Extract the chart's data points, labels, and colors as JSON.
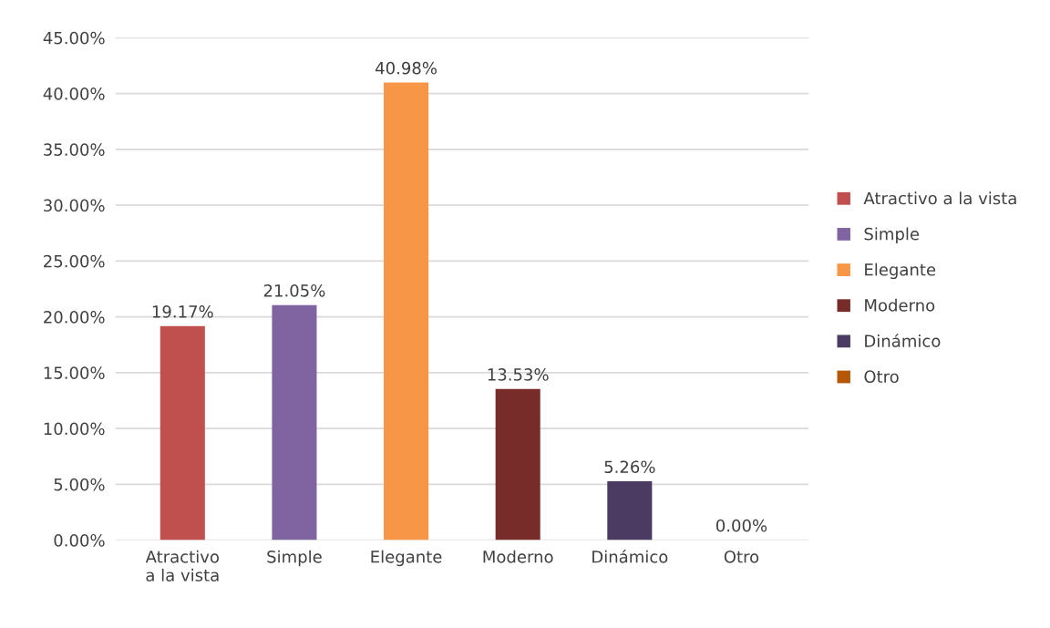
{
  "chart_data": {
    "type": "bar",
    "categories": [
      "Atractivo a la vista",
      "Simple",
      "Elegante",
      "Moderno",
      "Dinámico",
      "Otro"
    ],
    "series": [
      {
        "name": "Atractivo a la vista",
        "color": "#c0504d",
        "values": [
          19.17,
          null,
          null,
          null,
          null,
          null
        ],
        "value_labels": [
          "19.17%",
          null,
          null,
          null,
          null,
          null
        ]
      },
      {
        "name": "Simple",
        "color": "#8064a2",
        "values": [
          null,
          21.05,
          null,
          null,
          null,
          null
        ],
        "value_labels": [
          null,
          "21.05%",
          null,
          null,
          null,
          null
        ]
      },
      {
        "name": "Elegante",
        "color": "#f79646",
        "values": [
          null,
          null,
          40.98,
          null,
          null,
          null
        ],
        "value_labels": [
          null,
          null,
          "40.98%",
          null,
          null,
          null
        ]
      },
      {
        "name": "Moderno",
        "color": "#772c2a",
        "values": [
          null,
          null,
          null,
          13.53,
          null,
          null
        ],
        "value_labels": [
          null,
          null,
          null,
          "13.53%",
          null,
          null
        ]
      },
      {
        "name": "Dinámico",
        "color": "#4b3a62",
        "values": [
          null,
          null,
          null,
          null,
          5.26,
          null
        ],
        "value_labels": [
          null,
          null,
          null,
          null,
          "5.26%",
          null
        ]
      },
      {
        "name": "Otro",
        "color": "#b65708",
        "values": [
          null,
          null,
          null,
          null,
          null,
          0.0
        ],
        "value_labels": [
          null,
          null,
          null,
          null,
          null,
          "0.00%"
        ]
      }
    ],
    "ylim": [
      0,
      45
    ],
    "yticks": [
      {
        "value": 0,
        "label": "0.00%"
      },
      {
        "value": 5,
        "label": "5.00%"
      },
      {
        "value": 10,
        "label": "10.00%"
      },
      {
        "value": 15,
        "label": "15.00%"
      },
      {
        "value": 20,
        "label": "20.00%"
      },
      {
        "value": 25,
        "label": "25.00%"
      },
      {
        "value": 30,
        "label": "30.00%"
      },
      {
        "value": 35,
        "label": "35.00%"
      },
      {
        "value": 40,
        "label": "40.00%"
      },
      {
        "value": 45,
        "label": "45.00%"
      }
    ],
    "grid": "y",
    "legend": "right"
  }
}
